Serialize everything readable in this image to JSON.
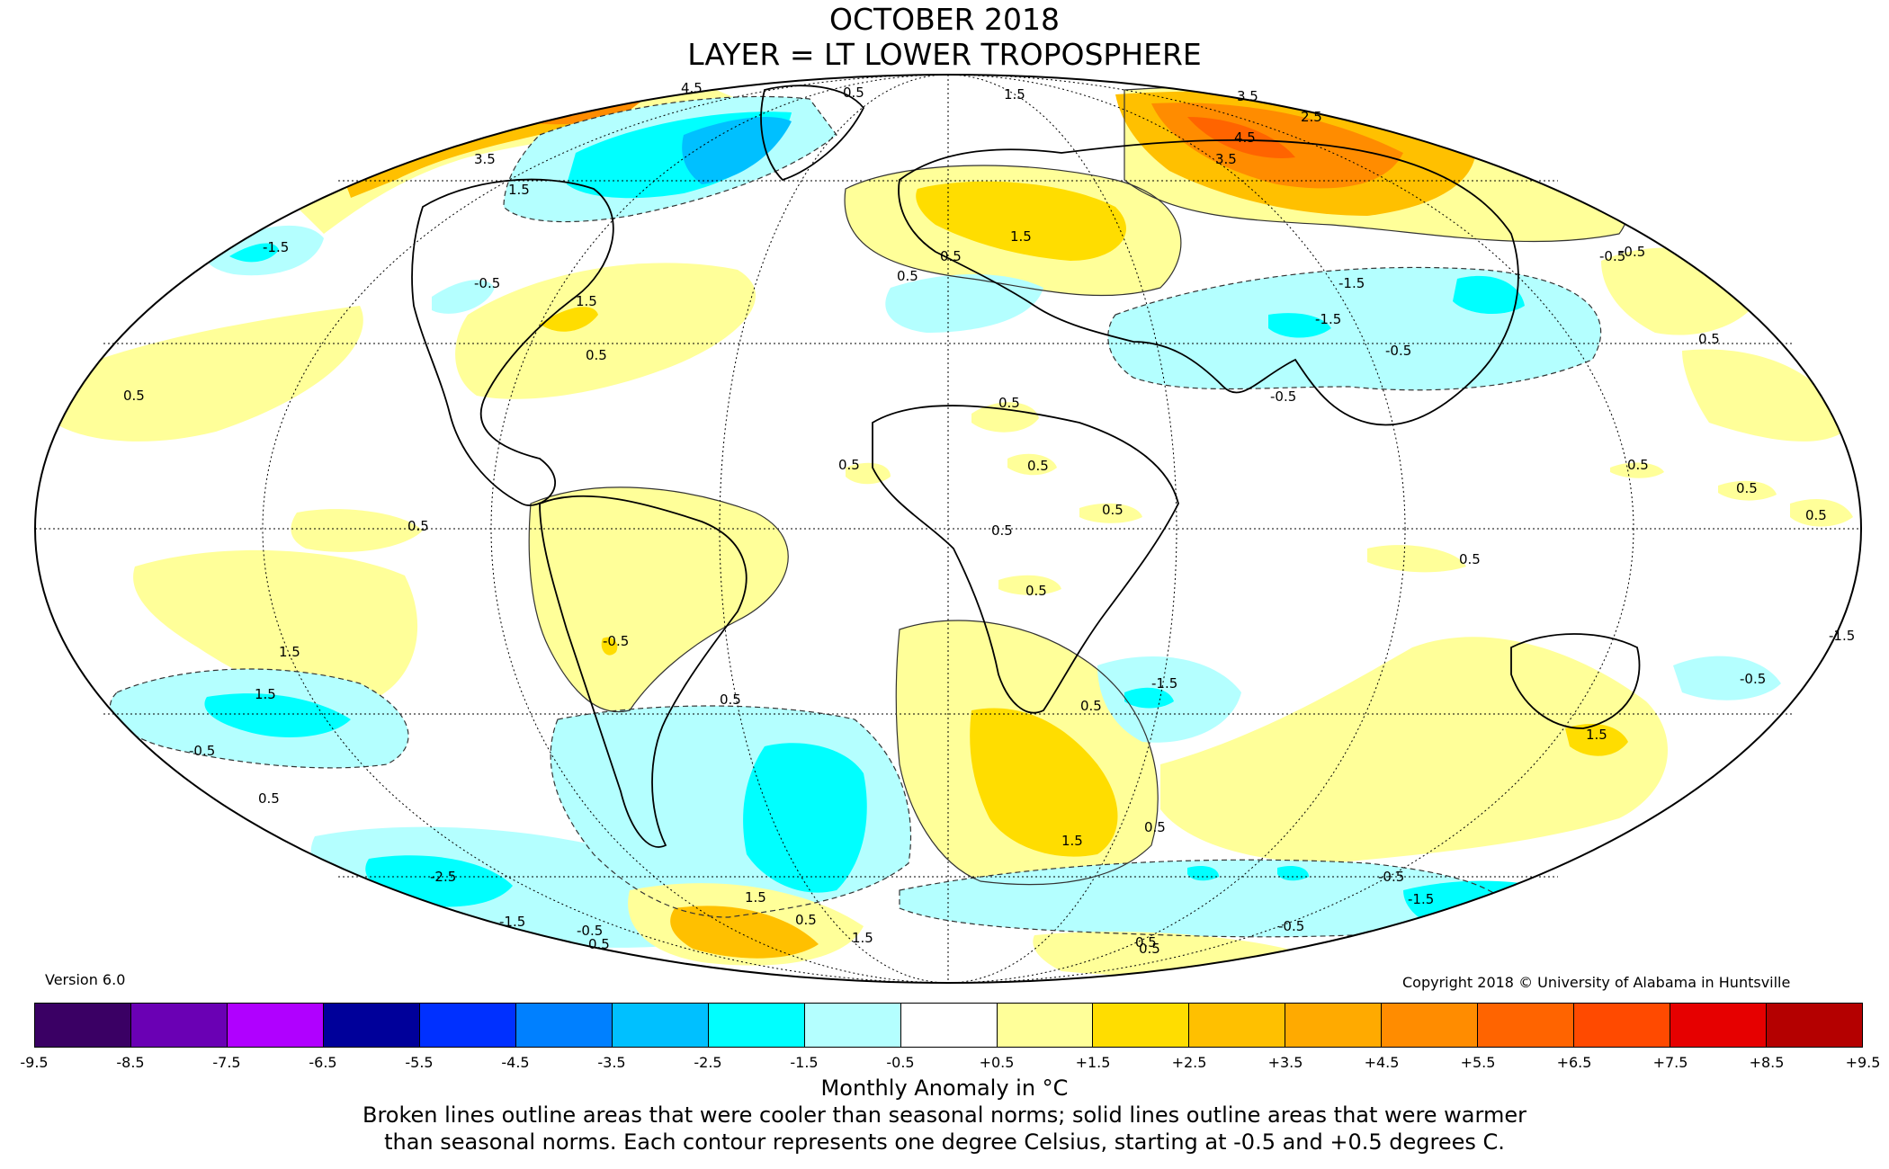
{
  "title": {
    "line1": "OCTOBER 2018",
    "line2": "LAYER = LT LOWER TROPOSPHERE"
  },
  "version": "Version 6.0",
  "copyright": "Copyright 2018 © University of Alabama in Huntsville",
  "colorbar": {
    "ticks": [
      "-9.5",
      "-8.5",
      "-7.5",
      "-6.5",
      "-5.5",
      "-4.5",
      "-3.5",
      "-2.5",
      "-1.5",
      "-0.5",
      "+0.5",
      "+1.5",
      "+2.5",
      "+3.5",
      "+4.5",
      "+5.5",
      "+6.5",
      "+7.5",
      "+8.5",
      "+9.5"
    ],
    "colors": [
      "#3a0064",
      "#6a00b4",
      "#b000ff",
      "#00009a",
      "#0030ff",
      "#0080ff",
      "#00c0ff",
      "#00ffff",
      "#b4ffff",
      "#ffffff",
      "#ffff99",
      "#ffdd00",
      "#ffc000",
      "#ffaa00",
      "#ff8c00",
      "#ff6400",
      "#ff4a00",
      "#e60000",
      "#b40000"
    ]
  },
  "unit_label": "Monthly Anomaly in °C",
  "caption": {
    "line1": "Broken lines outline areas that were cooler than seasonal norms; solid lines outline areas that were warmer",
    "line2": "than seasonal norms. Each contour represents one degree Celsius, starting at -0.5 and +0.5 degrees C."
  },
  "map": {
    "projection": "mollweide",
    "contour_labels": [
      "4.5",
      "0.5",
      "1.5",
      "3.5",
      "2.5",
      "4.5",
      "3.5",
      "3.5",
      "1.5",
      "-1.5",
      "-0.5",
      "1.5",
      "0.5",
      "0.5",
      "-0.5",
      "1.5",
      "-1.5",
      "0.5",
      "0.5",
      "0.5",
      "0.5",
      "0.5",
      "0.5",
      "0.5",
      "0.5",
      "0.5",
      "0.5",
      "0.5",
      "-0.5",
      "0.5",
      "0.5",
      "-1.5",
      "0.5",
      "-0.5",
      "1.5",
      "0.5",
      "1.5",
      "0.5",
      "-1.5",
      "-0.5",
      "0.5",
      "-2.5",
      "-1.5",
      "-0.5",
      "1.5",
      "0.5",
      "1.5",
      "-0.5",
      "0.5",
      "-0.5",
      "-1.5",
      "-0.5",
      "0.5",
      "1.5",
      "0.5",
      "-0.5",
      "1.5",
      "0.5",
      "-1.5",
      "-0.5"
    ]
  }
}
